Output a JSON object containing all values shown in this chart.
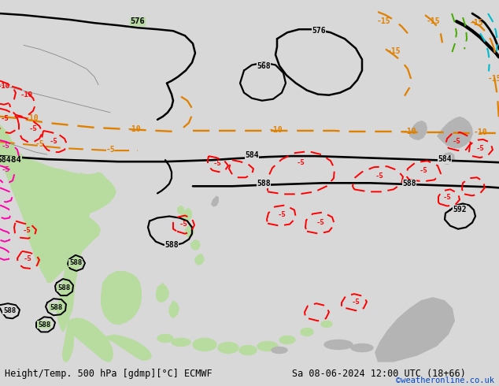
{
  "title_left": "Height/Temp. 500 hPa [gdmp][°C] ECMWF",
  "title_right": "Sa 08-06-2024 12:00 UTC (18+66)",
  "credit": "©weatheronline.co.uk",
  "bg_color": "#d8d8d8",
  "land_green": "#b8dca0",
  "land_gray": "#b4b4b4",
  "sea_color": "#d8d8d8",
  "bar_color": "#ffffff",
  "title_color": "#000000",
  "credit_color": "#0044cc",
  "font_title": 8.5,
  "font_credit": 7.5,
  "black_lw": 1.6,
  "orange_lw": 1.5,
  "red_lw": 1.3,
  "cyan_lw": 1.4,
  "green_lw": 1.3
}
